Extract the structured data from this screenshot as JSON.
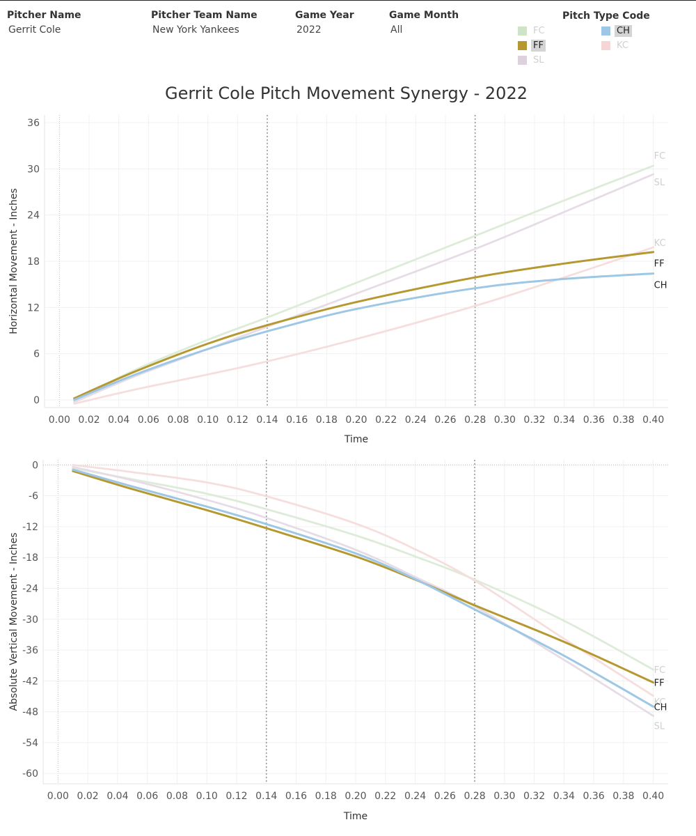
{
  "filters": {
    "pitcher_name": {
      "label": "Pitcher Name",
      "value": "Gerrit Cole"
    },
    "team_name": {
      "label": "Pitcher Team Name",
      "value": "New York Yankees"
    },
    "game_year": {
      "label": "Game Year",
      "value": "2022"
    },
    "game_month": {
      "label": "Game Month",
      "value": "All"
    }
  },
  "legend": {
    "title": "Pitch Type Code",
    "items": [
      {
        "code": "FC",
        "color": "#cfe3c9",
        "state": "dim"
      },
      {
        "code": "CH",
        "color": "#9dc7e4",
        "state": "selected"
      },
      {
        "code": "FF",
        "color": "#b5982f",
        "state": "selected"
      },
      {
        "code": "KC",
        "color": "#f4d6d6",
        "state": "dim"
      },
      {
        "code": "SL",
        "color": "#ddd1de",
        "state": "dim"
      }
    ]
  },
  "title": "Gerrit Cole Pitch Movement Synergy - 2022",
  "chart_data": [
    {
      "type": "line",
      "title": "Gerrit Cole Pitch Movement Synergy - 2022",
      "xlabel": "Time",
      "ylabel": "Horizontal Movement - Inches",
      "xlim": [
        -0.01,
        0.41
      ],
      "ylim": [
        -1,
        37
      ],
      "xticks": [
        "0.00",
        "0.02",
        "0.04",
        "0.06",
        "0.08",
        "0.10",
        "0.12",
        "0.14",
        "0.16",
        "0.18",
        "0.20",
        "0.22",
        "0.24",
        "0.26",
        "0.28",
        "0.30",
        "0.32",
        "0.34",
        "0.36",
        "0.38",
        "0.40"
      ],
      "yticks": [
        "0",
        "6",
        "12",
        "18",
        "24",
        "30",
        "36"
      ],
      "reference_lines_x": [
        0.14,
        0.28
      ],
      "grid": true,
      "x": [
        0.01,
        0.05,
        0.1,
        0.14,
        0.2,
        0.28,
        0.34,
        0.4
      ],
      "series": [
        {
          "name": "FC",
          "color": "#dcecd8",
          "values": [
            -0.2,
            3.8,
            7.8,
            10.7,
            15.2,
            21.3,
            25.9,
            30.4
          ]
        },
        {
          "name": "SL",
          "color": "#e6dce6",
          "values": [
            -0.3,
            3.0,
            6.6,
            9.5,
            13.8,
            19.6,
            24.4,
            29.3
          ]
        },
        {
          "name": "KC",
          "color": "#f6dede",
          "values": [
            -0.5,
            1.3,
            3.3,
            5.0,
            7.9,
            12.2,
            15.9,
            19.8
          ]
        },
        {
          "name": "FF",
          "color": "#b5982f",
          "values": [
            0.2,
            3.6,
            7.3,
            9.7,
            12.7,
            15.9,
            17.7,
            19.2
          ]
        },
        {
          "name": "CH",
          "color": "#9dc7e4",
          "values": [
            0.0,
            3.2,
            6.6,
            8.9,
            11.8,
            14.5,
            15.7,
            16.4
          ]
        }
      ]
    },
    {
      "type": "line",
      "xlabel": "Time",
      "ylabel": "Absolute Vertical Movement - Inches",
      "xlim": [
        -0.01,
        0.41
      ],
      "ylim": [
        -62,
        1
      ],
      "xticks": [
        "0.00",
        "0.02",
        "0.04",
        "0.06",
        "0.08",
        "0.10",
        "0.12",
        "0.14",
        "0.16",
        "0.18",
        "0.20",
        "0.22",
        "0.24",
        "0.26",
        "0.28",
        "0.30",
        "0.32",
        "0.34",
        "0.36",
        "0.38",
        "0.40"
      ],
      "yticks": [
        "0",
        "-6",
        "-12",
        "-18",
        "-24",
        "-30",
        "-36",
        "-42",
        "-48",
        "-54",
        "-60"
      ],
      "reference_lines_x": [
        0.14,
        0.28
      ],
      "grid": true,
      "x": [
        0.01,
        0.05,
        0.1,
        0.14,
        0.2,
        0.24,
        0.28,
        0.34,
        0.4
      ],
      "series": [
        {
          "name": "FC",
          "color": "#dcecd8",
          "values": [
            -0.6,
            -2.8,
            -5.6,
            -8.6,
            -13.7,
            -17.8,
            -22.3,
            -30.3,
            -39.8
          ]
        },
        {
          "name": "KC",
          "color": "#f6dede",
          "values": [
            0.0,
            -1.4,
            -3.4,
            -6.1,
            -11.4,
            -16.4,
            -22.5,
            -33.8,
            -44.9
          ]
        },
        {
          "name": "SL",
          "color": "#e6dce6",
          "values": [
            -0.4,
            -3.0,
            -6.8,
            -10.3,
            -16.5,
            -21.8,
            -27.5,
            -37.9,
            -48.8
          ]
        },
        {
          "name": "FF",
          "color": "#b5982f",
          "values": [
            -1.2,
            -4.7,
            -8.8,
            -12.3,
            -17.8,
            -22.3,
            -27.3,
            -34.4,
            -42.3
          ]
        },
        {
          "name": "CH",
          "color": "#9dc7e4",
          "values": [
            -0.9,
            -4.2,
            -8.1,
            -11.5,
            -17.2,
            -22.2,
            -28.1,
            -37.1,
            -47.0
          ]
        }
      ]
    }
  ]
}
